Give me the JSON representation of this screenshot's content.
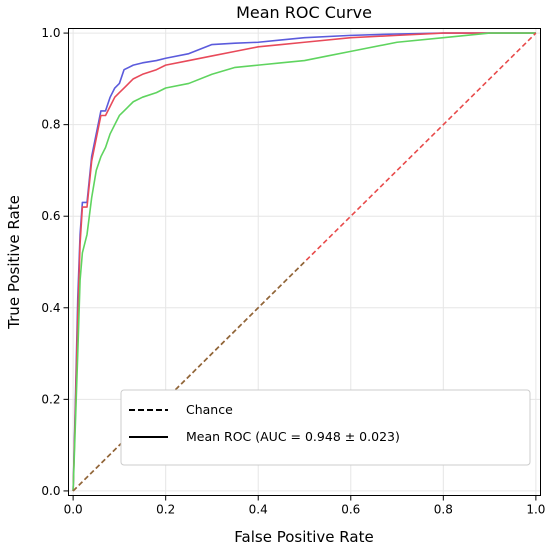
{
  "chart_data": {
    "type": "line",
    "title": "Mean ROC Curve",
    "xlabel": "False Positive Rate",
    "ylabel": "True Positive Rate",
    "xlim": [
      -0.01,
      1.01
    ],
    "ylim": [
      -0.01,
      1.01
    ],
    "xticks": [
      0.0,
      0.2,
      0.4,
      0.6,
      0.8,
      1.0
    ],
    "xtick_labels": [
      "0.0",
      "0.2",
      "0.4",
      "0.6",
      "0.8",
      "1.0"
    ],
    "yticks": [
      0.0,
      0.2,
      0.4,
      0.6,
      0.8,
      1.0
    ],
    "ytick_labels": [
      "0.0",
      "0.2",
      "0.4",
      "0.6",
      "0.8",
      "1.0"
    ],
    "grid": true,
    "legend_position": "lower-right",
    "legend": [
      {
        "label": "Chance",
        "style": "dashed",
        "color": "#000000"
      },
      {
        "label": "Mean ROC (AUC = 0.948 ± 0.023)",
        "style": "solid",
        "color": "#000000"
      }
    ],
    "series": [
      {
        "color": "#5b5bdc",
        "style": "solid",
        "x": [
          0.0,
          0.005,
          0.01,
          0.015,
          0.02,
          0.03,
          0.04,
          0.05,
          0.06,
          0.07,
          0.08,
          0.09,
          0.1,
          0.11,
          0.12,
          0.13,
          0.15,
          0.18,
          0.2,
          0.25,
          0.3,
          0.35,
          0.4,
          0.45,
          0.5,
          0.6,
          0.7,
          0.8,
          0.9,
          1.0
        ],
        "y": [
          0.0,
          0.2,
          0.42,
          0.56,
          0.63,
          0.63,
          0.73,
          0.78,
          0.83,
          0.83,
          0.86,
          0.88,
          0.89,
          0.92,
          0.925,
          0.93,
          0.935,
          0.94,
          0.945,
          0.955,
          0.975,
          0.978,
          0.98,
          0.985,
          0.99,
          0.995,
          0.998,
          1.0,
          1.0,
          1.0
        ]
      },
      {
        "color": "#e84a5a",
        "style": "solid",
        "x": [
          0.0,
          0.005,
          0.01,
          0.015,
          0.02,
          0.03,
          0.04,
          0.05,
          0.06,
          0.07,
          0.08,
          0.09,
          0.1,
          0.11,
          0.12,
          0.13,
          0.15,
          0.18,
          0.2,
          0.25,
          0.3,
          0.35,
          0.4,
          0.45,
          0.5,
          0.6,
          0.7,
          0.8,
          0.9,
          1.0
        ],
        "y": [
          0.0,
          0.18,
          0.38,
          0.54,
          0.62,
          0.62,
          0.72,
          0.77,
          0.82,
          0.82,
          0.84,
          0.86,
          0.87,
          0.88,
          0.89,
          0.9,
          0.91,
          0.92,
          0.93,
          0.94,
          0.95,
          0.96,
          0.97,
          0.975,
          0.98,
          0.99,
          0.995,
          1.0,
          1.0,
          1.0
        ]
      },
      {
        "color": "#5fd45f",
        "style": "solid",
        "x": [
          0.0,
          0.005,
          0.01,
          0.015,
          0.02,
          0.03,
          0.04,
          0.05,
          0.06,
          0.07,
          0.08,
          0.09,
          0.1,
          0.11,
          0.12,
          0.13,
          0.15,
          0.18,
          0.2,
          0.25,
          0.3,
          0.35,
          0.4,
          0.45,
          0.5,
          0.55,
          0.6,
          0.7,
          0.8,
          0.9,
          1.0
        ],
        "y": [
          0.0,
          0.15,
          0.3,
          0.46,
          0.52,
          0.56,
          0.64,
          0.7,
          0.73,
          0.75,
          0.78,
          0.8,
          0.82,
          0.83,
          0.84,
          0.85,
          0.86,
          0.87,
          0.88,
          0.89,
          0.91,
          0.925,
          0.93,
          0.935,
          0.94,
          0.95,
          0.96,
          0.98,
          0.99,
          1.0,
          1.0
        ]
      },
      {
        "color": "#e84a4a",
        "style": "dashed",
        "x": [
          0.0,
          1.0
        ],
        "y": [
          0.0,
          1.0
        ]
      },
      {
        "color": "#8b6b3a",
        "style": "dashed",
        "x": [
          0.0,
          0.5
        ],
        "y": [
          0.0,
          0.5
        ]
      }
    ]
  }
}
